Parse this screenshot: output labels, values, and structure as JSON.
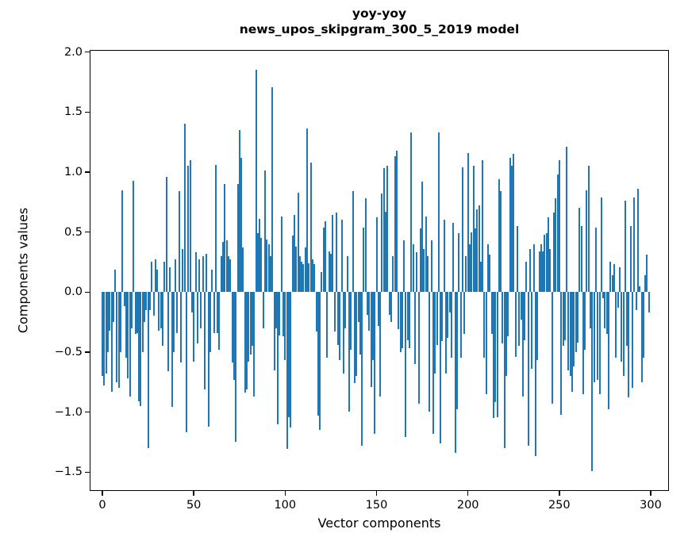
{
  "chart_data": {
    "type": "bar",
    "title": "yoy-yoy",
    "subtitle": "news_upos_skipgram_300_5_2019 model",
    "xlabel": "Vector components",
    "ylabel": "Components values",
    "bar_color": "#1f77b4",
    "x_start": 0,
    "x_step": 1,
    "n_bars": 300,
    "xlim": [
      -6.95,
      309.98
    ],
    "ylim": [
      -1.657,
      2.017
    ],
    "grid": false,
    "legend": "none",
    "xticks": [
      0,
      50,
      100,
      150,
      200,
      250,
      300
    ],
    "xtick_labels": [
      "0",
      "50",
      "100",
      "150",
      "200",
      "250",
      "300"
    ],
    "yticks": [
      2.0,
      1.5,
      1.0,
      0.5,
      0.0,
      -0.5,
      -1.0,
      -1.5
    ],
    "ytick_labels": [
      "2.0",
      "1.5",
      "1.0",
      "0.5",
      "0.0",
      "−0.5",
      "−1.0",
      "−1.5"
    ],
    "values": [
      -0.7,
      -0.78,
      -0.68,
      -0.5,
      -0.32,
      -0.83,
      -0.25,
      0.19,
      -0.75,
      -0.8,
      -0.5,
      0.85,
      -0.12,
      -0.55,
      -0.72,
      -0.87,
      -0.3,
      0.93,
      -0.35,
      -0.34,
      -0.91,
      -0.95,
      -0.5,
      -0.25,
      -0.15,
      -1.3,
      -0.15,
      0.25,
      -0.2,
      0.27,
      0.19,
      -0.32,
      -0.3,
      -0.45,
      0.25,
      0.96,
      -0.66,
      0.21,
      -0.96,
      -0.5,
      0.27,
      -0.34,
      0.84,
      -0.59,
      0.36,
      1.4,
      -1.17,
      1.05,
      1.1,
      -0.17,
      -0.58,
      0.33,
      -0.43,
      0.27,
      -0.3,
      0.3,
      -0.81,
      0.32,
      -1.12,
      -0.5,
      0.19,
      -0.34,
      1.06,
      -0.34,
      -0.48,
      0.3,
      0.42,
      0.9,
      0.43,
      0.3,
      0.27,
      -0.59,
      -0.73,
      -1.25,
      0.9,
      1.35,
      1.12,
      0.37,
      -0.84,
      -0.81,
      -0.58,
      -0.52,
      -0.45,
      -0.87,
      1.85,
      0.49,
      0.61,
      0.45,
      -0.3,
      1.01,
      0.44,
      0.4,
      0.3,
      1.71,
      -0.65,
      -0.3,
      -1.1,
      -0.36,
      0.63,
      -0.37,
      -0.57,
      -1.31,
      -1.04,
      -1.13,
      0.47,
      0.64,
      0.38,
      0.83,
      0.3,
      0.25,
      0.23,
      0.37,
      1.36,
      0.24,
      1.08,
      0.27,
      0.23,
      -0.33,
      -1.03,
      -1.15,
      0.17,
      0.54,
      0.59,
      -0.55,
      0.34,
      0.32,
      0.64,
      -0.33,
      0.66,
      -0.44,
      -0.57,
      0.6,
      -0.68,
      -0.3,
      0.3,
      -1.0,
      -0.48,
      0.84,
      -0.76,
      -0.7,
      -0.25,
      -0.52,
      -1.28,
      0.54,
      0.78,
      -0.19,
      -0.32,
      -0.79,
      -0.57,
      -1.18,
      0.62,
      -0.28,
      -0.87,
      0.82,
      1.03,
      0.67,
      1.05,
      -0.19,
      -0.25,
      0.3,
      1.13,
      1.18,
      -0.31,
      -0.5,
      -0.47,
      0.43,
      -1.21,
      -0.4,
      -0.47,
      1.33,
      0.4,
      -0.6,
      0.33,
      -0.93,
      0.53,
      0.92,
      0.36,
      0.63,
      0.3,
      -1.0,
      0.43,
      -1.18,
      -0.68,
      -0.44,
      1.33,
      -1.26,
      -0.41,
      0.6,
      -0.68,
      -0.38,
      -0.17,
      -0.55,
      0.58,
      -1.34,
      -0.98,
      0.49,
      -0.55,
      1.04,
      -0.35,
      0.3,
      1.16,
      0.4,
      0.5,
      1.05,
      0.53,
      0.69,
      0.72,
      0.25,
      1.1,
      -0.55,
      -0.85,
      0.4,
      0.31,
      -0.35,
      -1.05,
      -0.92,
      -1.04,
      0.94,
      0.84,
      -0.43,
      -1.3,
      -0.7,
      -0.37,
      1.12,
      1.05,
      1.15,
      -0.54,
      0.55,
      -0.45,
      -0.23,
      -0.87,
      -0.4,
      0.25,
      -1.28,
      0.36,
      -0.64,
      0.4,
      -1.37,
      -0.57,
      0.34,
      0.4,
      0.34,
      0.48,
      0.49,
      0.62,
      0.36,
      -0.93,
      0.66,
      0.78,
      0.98,
      1.1,
      -1.02,
      -0.45,
      -0.4,
      1.21,
      -0.65,
      -0.7,
      -0.83,
      -0.62,
      -0.5,
      -0.42,
      0.7,
      0.55,
      -0.85,
      -0.48,
      0.85,
      1.05,
      -0.3,
      -1.49,
      -0.75,
      0.54,
      -0.73,
      -0.85,
      0.79,
      -0.05,
      -0.3,
      -0.35,
      -0.98,
      0.25,
      0.14,
      0.23,
      -0.55,
      -0.13,
      0.21,
      -0.58,
      -0.7,
      0.76,
      -0.45,
      -0.88,
      0.55,
      -0.8,
      0.79,
      -0.15,
      0.86,
      0.05,
      -0.75,
      -0.55,
      0.14,
      0.31,
      -0.17
    ]
  }
}
